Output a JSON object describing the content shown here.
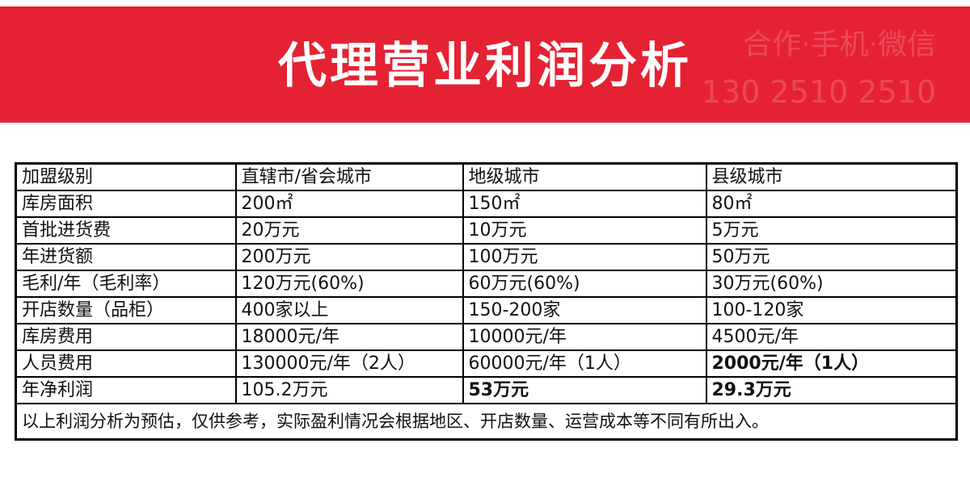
{
  "banner": {
    "title": "代理营业利润分析",
    "watermark_line1": "合作·手机·微信",
    "watermark_line2": "130 2510 2510",
    "background_color": "#e52233"
  },
  "table": {
    "headers": [
      "加盟级别",
      "直辖市/省会城市",
      "地级城市",
      "县级城市"
    ],
    "rows": [
      [
        "库房面积",
        "200㎡",
        "150㎡",
        "80㎡"
      ],
      [
        "首批进货费",
        "20万元",
        "10万元",
        "5万元"
      ],
      [
        "年进货额",
        "200万元",
        "100万元",
        "50万元"
      ],
      [
        "毛利/年（毛利率）",
        "120万元(60%)",
        "60万元(60%)",
        "30万元(60%)"
      ],
      [
        "开店数量（品柜）",
        "400家以上",
        "150-200家",
        "100-120家"
      ],
      [
        "库房费用",
        "18000元/年",
        "10000元/年",
        "4500元/年"
      ],
      [
        "人员费用",
        "130000元/年（2人）",
        "60000元/年（1人）",
        "2000元/年（1人）"
      ],
      [
        "年净利润",
        "105.2万元",
        "53万元",
        "29.3万元"
      ]
    ],
    "note": "以上利润分析为预估，仅供参考，实际盈利情况会根据地区、开店数量、运营成本等不同有所出入。"
  }
}
